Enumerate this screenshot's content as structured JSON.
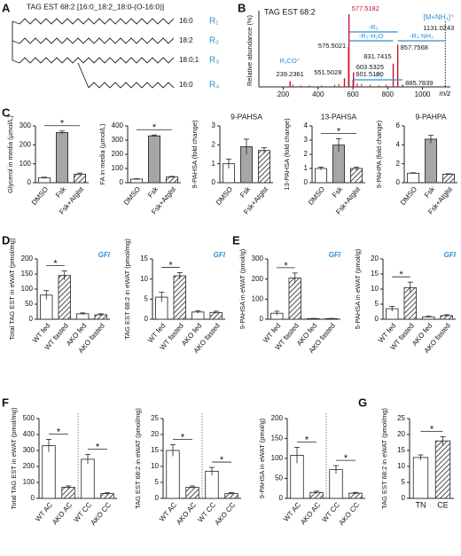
{
  "panels": [
    "A",
    "B",
    "C",
    "D",
    "E",
    "F",
    "G"
  ],
  "structure": {
    "title": "TAG EST 68:2 [16:0_18:2_18:0-(O-16:0)]",
    "chains": [
      {
        "label": "16:0",
        "r": "R₁"
      },
      {
        "label": "18:2",
        "r": "R₂"
      },
      {
        "label": "18:0;1",
        "r": "R₃"
      },
      {
        "label": "16:0",
        "r": "R₄"
      }
    ]
  },
  "chart_data": [
    {
      "type": "spectrum",
      "title": "TAG EST 68:2",
      "ylabel": "Relative abundance (%)",
      "xlabel": "m/z",
      "x": [
        577.5182,
        575.5021,
        857.7568,
        831.7415,
        603.5325,
        551.5028,
        601.518,
        885.7839,
        239.2361,
        1131.0243
      ],
      "x_labels": [
        "577.5182",
        "575.5021",
        "857.7568",
        "831.7415",
        "603.5325",
        "551.5028",
        "601.5180",
        "885.7839",
        "239.2361",
        "1131.0243"
      ],
      "values": [
        100,
        55,
        58,
        32,
        20,
        12,
        10,
        3,
        8,
        2
      ],
      "minor_x": [
        255,
        300,
        350,
        420,
        495,
        520,
        625,
        650,
        700,
        750,
        790
      ],
      "minor_values": [
        3,
        2,
        2,
        2,
        3,
        4,
        5,
        4,
        3,
        2,
        3
      ],
      "color": "#c8102e",
      "xlim": [
        60,
        1160
      ],
      "ylim": [
        0,
        100
      ],
      "xticks": [
        200,
        400,
        600,
        800,
        1000
      ],
      "precursor_label": "[M+NH₄]⁺",
      "annotations": [
        "-R₂",
        "-R₃-H₂O",
        "-R₄ NH₃",
        "R₁CO⁺",
        "-R₁"
      ]
    },
    {
      "type": "bar",
      "ylabel": "Glycerol in media (µmol/L)",
      "categories": [
        "DMSO",
        "Fsk",
        "Fsk+Atglst"
      ],
      "values": [
        25,
        265,
        45
      ],
      "errors": [
        4,
        8,
        6
      ],
      "colors": [
        "#ffffff",
        "#a6a6a6",
        "hatch"
      ],
      "ylim": [
        0,
        300
      ],
      "yticks": [
        0,
        100,
        200,
        300
      ],
      "significance": [
        {
          "label": "*",
          "between": [
            "DMSO",
            "Fsk+Atglst"
          ]
        }
      ]
    },
    {
      "type": "bar",
      "ylabel": "FA in media (µmol/L)",
      "categories": [
        "DMSO",
        "Fsk",
        "Fsk+Atglst"
      ],
      "values": [
        25,
        330,
        40
      ],
      "errors": [
        3,
        6,
        4
      ],
      "colors": [
        "#ffffff",
        "#a6a6a6",
        "hatch"
      ],
      "ylim": [
        0,
        400
      ],
      "yticks": [
        0,
        100,
        200,
        300,
        400
      ],
      "significance": [
        {
          "label": "*",
          "between": [
            "DMSO",
            "Fsk+Atglst"
          ]
        }
      ]
    },
    {
      "type": "bar",
      "title": "9-PAHSA",
      "ylabel": "9-PAHSA (fold change)",
      "categories": [
        "DMSO",
        "Fsk",
        "Fsk+Atglst"
      ],
      "values": [
        1.0,
        1.9,
        1.7
      ],
      "errors": [
        0.25,
        0.4,
        0.15
      ],
      "colors": [
        "#ffffff",
        "#a6a6a6",
        "hatch"
      ],
      "ylim": [
        0,
        3
      ],
      "yticks": [
        0,
        1,
        2,
        3
      ]
    },
    {
      "type": "bar",
      "title": "13-PAHSA",
      "ylabel": "13-PAHSA (fold change)",
      "categories": [
        "DMSO",
        "Fsk",
        "Fsk+Atglst"
      ],
      "values": [
        1.0,
        2.65,
        1.0
      ],
      "errors": [
        0.1,
        0.45,
        0.1
      ],
      "colors": [
        "#ffffff",
        "#a6a6a6",
        "hatch"
      ],
      "ylim": [
        0,
        4
      ],
      "yticks": [
        0,
        1,
        2,
        3,
        4
      ],
      "significance": [
        {
          "label": "*",
          "between": [
            "DMSO",
            "Fsk+Atglst"
          ]
        }
      ]
    },
    {
      "type": "bar",
      "title": "9-PAHPA",
      "ylabel": "9-PAHPA (fold change)",
      "categories": [
        "DMSO",
        "Fsk",
        "Fsk+Atglst"
      ],
      "values": [
        1.0,
        4.6,
        0.9
      ],
      "errors": [
        0.05,
        0.4,
        0.05
      ],
      "colors": [
        "#ffffff",
        "#a6a6a6",
        "hatch"
      ],
      "ylim": [
        0,
        6
      ],
      "yticks": [
        0,
        2,
        4,
        6
      ]
    },
    {
      "type": "bar",
      "ylabel": "Total TAG EST in eWAT (pmol/mg)",
      "note": "GFI",
      "categories": [
        "WT fed",
        "WT fasted",
        "AKO fed",
        "AKO fasted"
      ],
      "values": [
        80,
        145,
        18,
        15
      ],
      "errors": [
        15,
        15,
        3,
        3
      ],
      "colors": [
        "#ffffff",
        "hatch",
        "#ffffff",
        "hatch"
      ],
      "ylim": [
        0,
        200
      ],
      "yticks": [
        0,
        50,
        100,
        150,
        200
      ],
      "significance": [
        {
          "label": "*",
          "between": [
            "WT fed",
            "WT fasted"
          ]
        }
      ]
    },
    {
      "type": "bar",
      "ylabel": "TAG EST 68:2 in eWAT (pmol/mg)",
      "note": "GFI",
      "categories": [
        "WT fed",
        "WT fasted",
        "AKO fed",
        "AKO fasted"
      ],
      "values": [
        5.5,
        10.8,
        1.8,
        1.7
      ],
      "errors": [
        1.2,
        0.8,
        0.3,
        0.3
      ],
      "colors": [
        "#ffffff",
        "hatch",
        "#ffffff",
        "hatch"
      ],
      "ylim": [
        0,
        15
      ],
      "yticks": [
        0,
        5,
        10,
        15
      ],
      "significance": [
        {
          "label": "*",
          "between": [
            "WT fed",
            "WT fasted"
          ]
        }
      ]
    },
    {
      "type": "bar",
      "ylabel": "9-PAHSA in eWAT (pmol/g)",
      "note": "GFI",
      "categories": [
        "WT fed",
        "WT fasted",
        "AKO fed",
        "AKO fasted"
      ],
      "values": [
        30,
        205,
        3,
        3
      ],
      "errors": [
        10,
        25,
        1,
        1
      ],
      "colors": [
        "#ffffff",
        "hatch",
        "#ffffff",
        "hatch"
      ],
      "ylim": [
        0,
        300
      ],
      "yticks": [
        0,
        100,
        200,
        300
      ],
      "significance": [
        {
          "label": "*",
          "between": [
            "WT fed",
            "WT fasted"
          ]
        }
      ]
    },
    {
      "type": "bar",
      "ylabel": "5-PAHSA in eWAT (pmol/g)",
      "note": "GFI",
      "categories": [
        "WT fed",
        "WT fasted",
        "AKO fed",
        "AKO fasted"
      ],
      "values": [
        3.5,
        10.5,
        0.8,
        1.2
      ],
      "errors": [
        0.8,
        1.8,
        0.2,
        0.3
      ],
      "colors": [
        "#ffffff",
        "hatch",
        "#ffffff",
        "hatch"
      ],
      "ylim": [
        0,
        20
      ],
      "yticks": [
        0,
        5,
        10,
        15,
        20
      ],
      "significance": [
        {
          "label": "*",
          "between": [
            "WT fed",
            "WT fasted"
          ]
        }
      ]
    },
    {
      "type": "bar",
      "ylabel": "Total TAG EST in eWAT (pmol/mg)",
      "divider": true,
      "categories": [
        "WT AC",
        "AKO AC",
        "WT CC",
        "AKO CC"
      ],
      "values": [
        330,
        70,
        245,
        30
      ],
      "errors": [
        40,
        8,
        30,
        5
      ],
      "colors": [
        "#ffffff",
        "hatch",
        "#ffffff",
        "hatch"
      ],
      "ylim": [
        0,
        500
      ],
      "yticks": [
        0,
        100,
        200,
        300,
        400,
        500
      ],
      "significance": [
        {
          "label": "*",
          "between": [
            "WT AC",
            "AKO AC"
          ]
        },
        {
          "label": "*",
          "between": [
            "WT CC",
            "AKO CC"
          ]
        }
      ]
    },
    {
      "type": "bar",
      "ylabel": "TAG EST 68:2 in eWAT (pmol/mg)",
      "divider": true,
      "categories": [
        "WT AC",
        "AKO AC",
        "WT CC",
        "AKO CC"
      ],
      "values": [
        15,
        3.5,
        8.5,
        1.5
      ],
      "errors": [
        1.8,
        0.4,
        1.2,
        0.3
      ],
      "colors": [
        "#ffffff",
        "hatch",
        "#ffffff",
        "hatch"
      ],
      "ylim": [
        0,
        25
      ],
      "yticks": [
        0,
        5,
        10,
        15,
        20,
        25
      ],
      "significance": [
        {
          "label": "*",
          "between": [
            "WT AC",
            "AKO AC"
          ]
        },
        {
          "label": "*",
          "between": [
            "WT CC",
            "AKO CC"
          ]
        }
      ]
    },
    {
      "type": "bar",
      "ylabel": "9-PAHSA in eWAT (pmol/g)",
      "divider": true,
      "categories": [
        "WT AC",
        "AKO AC",
        "WT CC",
        "AKO CC"
      ],
      "values": [
        108,
        15,
        72,
        13
      ],
      "errors": [
        20,
        3,
        10,
        2
      ],
      "colors": [
        "#ffffff",
        "hatch",
        "#ffffff",
        "hatch"
      ],
      "ylim": [
        0,
        200
      ],
      "yticks": [
        0,
        50,
        100,
        150,
        200
      ],
      "significance": [
        {
          "label": "*",
          "between": [
            "WT AC",
            "AKO AC"
          ]
        },
        {
          "label": "*",
          "between": [
            "WT CC",
            "AKO CC"
          ]
        }
      ]
    },
    {
      "type": "bar",
      "ylabel": "TAG EST 68:2 in eWAT (pmol/mg)",
      "label_rotation": 0,
      "categories": [
        "TN",
        "CE"
      ],
      "values": [
        12.8,
        18
      ],
      "errors": [
        0.8,
        1.3
      ],
      "colors": [
        "#ffffff",
        "hatch"
      ],
      "ylim": [
        0,
        25
      ],
      "yticks": [
        0,
        5,
        10,
        15,
        20,
        25
      ],
      "significance": [
        {
          "label": "*",
          "between": [
            "TN",
            "CE"
          ]
        }
      ]
    }
  ]
}
